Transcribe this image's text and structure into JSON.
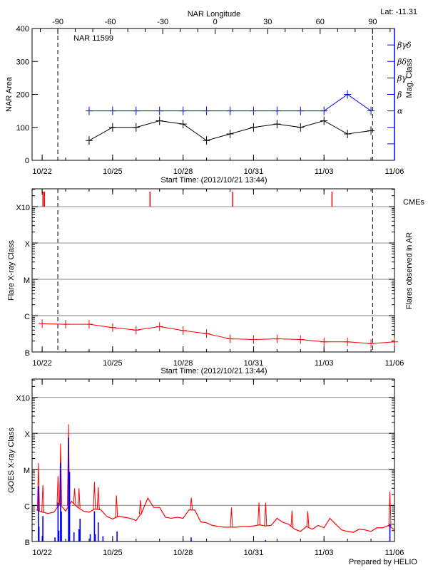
{
  "header": {
    "lat_label": "Lat: -11.31",
    "region_label": "NAR 11599",
    "prepared_by": "Prepared by HELIO"
  },
  "colors": {
    "area": "#000000",
    "mag_class": "#0000ff",
    "flares": "#ff0000",
    "cme": "#ff0000",
    "goes_long": "#ff0000",
    "goes_short": "#0000ff",
    "grid": "#999999",
    "limb_lines": "#000000"
  },
  "chart_data": [
    {
      "type": "line",
      "xlabel": "Start Time: (2012/10/21 13:44)",
      "ylabel": "NAR Area",
      "y2label": "Mag. Class",
      "xlim": [
        "2012-10-21T13:44",
        "2012-11-06T00:00"
      ],
      "ylim": [
        0,
        400
      ],
      "yticks": [
        0,
        100,
        200,
        300,
        400
      ],
      "x_ticks": [
        {
          "label": "10/22",
          "date": "2012-10-22T00:00"
        },
        {
          "label": "10/25",
          "date": "2012-10-25T00:00"
        },
        {
          "label": "10/28",
          "date": "2012-10-28T00:00"
        },
        {
          "label": "10/31",
          "date": "2012-10-31T00:00"
        },
        {
          "label": "11/03",
          "date": "2012-11-03T00:00"
        },
        {
          "label": "11/06",
          "date": "2012-11-06T00:00"
        }
      ],
      "top_axis": {
        "label": "NAR Longitude",
        "ticks": [
          -90,
          -60,
          -30,
          0,
          30,
          60,
          90
        ],
        "limb_times": [
          "2012-10-22T16:00",
          "2012-11-05T01:40"
        ]
      },
      "mag_class_axis": [
        {
          "label": "",
          "area_equiv": 50
        },
        {
          "label": "",
          "area_equiv": 100
        },
        {
          "label": "α",
          "area_equiv": 150
        },
        {
          "label": "β",
          "area_equiv": 200
        },
        {
          "label": "βγ",
          "area_equiv": 250
        },
        {
          "label": "βδ",
          "area_equiv": 300
        },
        {
          "label": "βγδ",
          "area_equiv": 350
        }
      ],
      "dates": [
        "2012-10-24T00:00",
        "2012-10-25T00:00",
        "2012-10-26T00:00",
        "2012-10-27T00:00",
        "2012-10-28T00:00",
        "2012-10-29T00:00",
        "2012-10-30T00:00",
        "2012-10-31T00:00",
        "2012-11-01T00:00",
        "2012-11-02T00:00",
        "2012-11-03T00:00",
        "2012-11-04T00:00",
        "2012-11-05T00:00"
      ],
      "series": [
        {
          "key": "area",
          "values": [
            60,
            100,
            100,
            120,
            110,
            60,
            80,
            100,
            110,
            100,
            120,
            80,
            90
          ]
        },
        {
          "key": "mag_class",
          "values": [
            "α",
            "α",
            "α",
            "α",
            "α",
            "α",
            "α",
            "α",
            "α",
            "α",
            "α",
            "β",
            "α"
          ]
        }
      ],
      "grid": false
    },
    {
      "type": "line",
      "xlabel": "Start Time: (2012/10/21 13:44)",
      "ylabel": "Flare X-ray Class",
      "y2label": "Flares observed in AR",
      "yscale": "log",
      "ylim": [
        1e-07,
        0.0031
      ],
      "class_ticks": [
        {
          "label": "B",
          "flux": 1e-07
        },
        {
          "label": "C",
          "flux": 1e-06
        },
        {
          "label": "M",
          "flux": 1e-05
        },
        {
          "label": "X",
          "flux": 0.0001
        },
        {
          "label": "X10",
          "flux": 0.001
        }
      ],
      "grid": true,
      "legend": {
        "label": "CMEs",
        "placement": "right"
      },
      "cme_times": [
        "2012-10-22T00:50",
        "2012-10-22T02:20",
        "2012-10-26T14:10",
        "2012-10-30T02:40",
        "2012-11-03T08:10"
      ],
      "dates": [
        "2012-10-22T00:00",
        "2012-10-23T00:00",
        "2012-10-24T00:00",
        "2012-10-25T00:00",
        "2012-10-26T00:00",
        "2012-10-27T00:00",
        "2012-10-28T00:00",
        "2012-10-29T00:00",
        "2012-10-30T00:00",
        "2012-10-31T00:00",
        "2012-11-01T00:00",
        "2012-11-02T00:00",
        "2012-11-03T00:00",
        "2012-11-04T00:00",
        "2012-11-05T00:00",
        "2012-11-06T00:00"
      ],
      "flux": [
        6e-07,
        5.8e-07,
        5.8e-07,
        4.7e-07,
        4e-07,
        5e-07,
        3.9e-07,
        3.2e-07,
        2.3e-07,
        2.2e-07,
        2.3e-07,
        2.2e-07,
        1.9e-07,
        1.9e-07,
        1.7e-07,
        1.9e-07
      ]
    },
    {
      "type": "line",
      "xlabel": "",
      "ylabel": "GOES X-ray Class",
      "yscale": "log",
      "ylim": [
        1e-07,
        0.0032
      ],
      "grid": true,
      "long_channel": {
        "times": [
          "2012-10-21T18:00",
          "2012-10-22T00:00",
          "2012-10-22T06:00",
          "2012-10-22T12:00",
          "2012-10-22T18:00",
          "2012-10-23T00:00",
          "2012-10-23T06:00",
          "2012-10-23T12:00",
          "2012-10-23T18:00",
          "2012-10-24T00:00",
          "2012-10-24T06:00",
          "2012-10-24T12:00",
          "2012-10-24T18:00",
          "2012-10-25T00:00",
          "2012-10-25T06:00",
          "2012-10-25T12:00",
          "2012-10-25T18:00",
          "2012-10-26T00:00",
          "2012-10-26T06:00",
          "2012-10-26T12:00",
          "2012-10-26T18:00",
          "2012-10-27T00:00",
          "2012-10-27T06:00",
          "2012-10-27T12:00",
          "2012-10-27T18:00",
          "2012-10-28T00:00",
          "2012-10-28T06:00",
          "2012-10-28T12:00",
          "2012-10-28T18:00",
          "2012-10-29T00:00",
          "2012-10-29T06:00",
          "2012-10-29T12:00",
          "2012-10-29T18:00",
          "2012-10-30T00:00",
          "2012-10-30T06:00",
          "2012-10-30T12:00",
          "2012-10-30T18:00",
          "2012-10-31T00:00",
          "2012-10-31T06:00",
          "2012-10-31T12:00",
          "2012-10-31T18:00",
          "2012-11-01T00:00",
          "2012-11-01T06:00",
          "2012-11-01T12:00",
          "2012-11-01T18:00",
          "2012-11-02T00:00",
          "2012-11-02T06:00",
          "2012-11-02T12:00",
          "2012-11-02T18:00",
          "2012-11-03T00:00",
          "2012-11-03T06:00",
          "2012-11-03T12:00",
          "2012-11-03T18:00",
          "2012-11-04T00:00",
          "2012-11-04T06:00",
          "2012-11-04T12:00",
          "2012-11-04T18:00",
          "2012-11-05T00:00",
          "2012-11-05T06:00",
          "2012-11-05T12:00",
          "2012-11-05T18:00",
          "2012-11-06T00:00"
        ],
        "flux": [
          7.5e-07,
          6.5e-07,
          6e-07,
          6.5e-07,
          1.1e-06,
          7e-07,
          1.3e-06,
          9e-07,
          7e-07,
          6.5e-07,
          8e-07,
          7.5e-07,
          5e-07,
          4.2e-07,
          5e-07,
          4.7e-07,
          4.4e-07,
          3.8e-07,
          6.5e-07,
          1.6e-06,
          8.8e-07,
          8.8e-07,
          4.7e-07,
          4.4e-07,
          4.7e-07,
          4.4e-07,
          7.5e-07,
          7.5e-07,
          3.5e-07,
          3.3e-07,
          2.8e-07,
          2.6e-07,
          2.5e-07,
          2.5e-07,
          2.5e-07,
          2.6e-07,
          2.6e-07,
          2.7e-07,
          2.9e-07,
          2.7e-07,
          2.8e-07,
          4.4e-07,
          3.4e-07,
          3e-07,
          2.2e-07,
          1.9e-07,
          2.6e-07,
          2.2e-07,
          2.8e-07,
          2.4e-07,
          4.4e-07,
          3e-07,
          2.1e-07,
          1.9e-07,
          1.8e-07,
          2.2e-07,
          2.1e-07,
          1.9e-07,
          2.4e-07,
          2.4e-07,
          2.8e-07,
          2.1e-07
        ],
        "peaks": [
          {
            "time": "2012-10-21T20:13",
            "flux": 1.5e-05
          },
          {
            "time": "2012-10-22T00:44",
            "flux": 3.7e-06
          },
          {
            "time": "2012-10-22T16:14",
            "flux": 6.5e-06
          },
          {
            "time": "2012-10-22T18:50",
            "flux": 5.2e-05
          },
          {
            "time": "2012-10-23T02:56",
            "flux": 0.00018
          },
          {
            "time": "2012-10-23T09:08",
            "flux": 3e-06
          },
          {
            "time": "2012-10-23T13:38",
            "flux": 3e-06
          },
          {
            "time": "2012-10-24T05:26",
            "flux": 4.5e-06
          },
          {
            "time": "2012-10-24T09:20",
            "flux": 3.2e-06
          },
          {
            "time": "2012-10-25T03:56",
            "flux": 1.9e-06
          },
          {
            "time": "2012-10-26T04:26",
            "flux": 1.4e-06
          },
          {
            "time": "2012-10-28T08:24",
            "flux": 1.65e-06
          },
          {
            "time": "2012-10-30T01:26",
            "flux": 8.7e-07
          },
          {
            "time": "2012-10-31T05:32",
            "flux": 1.2e-06
          },
          {
            "time": "2012-10-31T12:20",
            "flux": 1.2e-06
          },
          {
            "time": "2012-11-01T15:20",
            "flux": 7.2e-07
          },
          {
            "time": "2012-11-02T07:26",
            "flux": 6.9e-07
          },
          {
            "time": "2012-11-05T19:20",
            "flux": 2.4e-06
          }
        ]
      },
      "short_channel_peaks": [
        {
          "time": "2012-10-21T20:13",
          "flux": 3.4e-06
        },
        {
          "time": "2012-10-21T20:44",
          "flux": 2.6e-07
        },
        {
          "time": "2012-10-22T00:44",
          "flux": 5.1e-07
        },
        {
          "time": "2012-10-22T13:08",
          "flux": 1.3e-07
        },
        {
          "time": "2012-10-22T16:14",
          "flux": 1.2e-06
        },
        {
          "time": "2012-10-22T17:02",
          "flux": 2e-07
        },
        {
          "time": "2012-10-22T18:50",
          "flux": 1.5e-05
        },
        {
          "time": "2012-10-22T19:38",
          "flux": 6.8e-07
        },
        {
          "time": "2012-10-23T02:56",
          "flux": 7.6e-05
        },
        {
          "time": "2012-10-23T04:02",
          "flux": 8.5e-06
        },
        {
          "time": "2012-10-23T08:32",
          "flux": 1.8e-07
        },
        {
          "time": "2012-10-23T13:38",
          "flux": 2.2e-07
        },
        {
          "time": "2012-10-23T14:44",
          "flux": 4.3e-07
        },
        {
          "time": "2012-10-24T01:08",
          "flux": 1.6e-07
        },
        {
          "time": "2012-10-24T05:26",
          "flux": 6.9e-07
        },
        {
          "time": "2012-10-24T06:14",
          "flux": 1.6e-07
        },
        {
          "time": "2012-10-24T09:20",
          "flux": 3.4e-07
        },
        {
          "time": "2012-10-24T14:08",
          "flux": 1.4e-07
        },
        {
          "time": "2012-10-25T04:32",
          "flux": 1.9e-07
        },
        {
          "time": "2012-10-28T08:14",
          "flux": 1.3e-07
        },
        {
          "time": "2012-10-31T12:20",
          "flux": 1.1e-07
        },
        {
          "time": "2012-11-05T19:20",
          "flux": 3.1e-07
        }
      ]
    }
  ]
}
